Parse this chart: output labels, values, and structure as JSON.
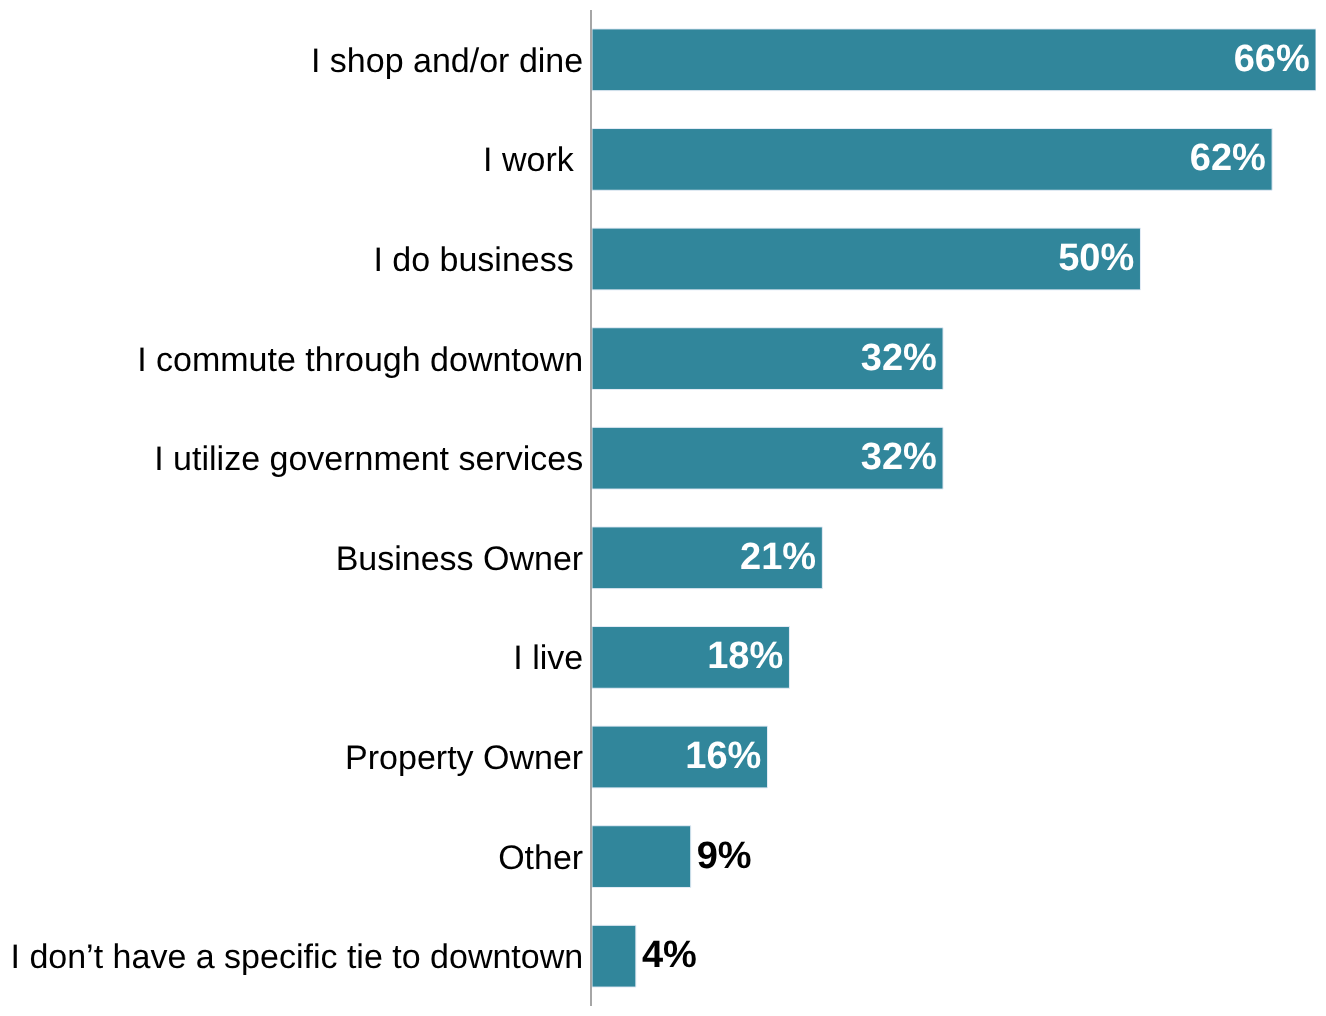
{
  "chart_data": {
    "type": "bar",
    "orientation": "horizontal",
    "categories": [
      "I shop and/or dine",
      "I work ",
      "I do business ",
      "I commute through downtown",
      "I utilize government services",
      "Business Owner",
      "I live",
      "Property Owner",
      "Other",
      "I don’t have a specific tie to downtown"
    ],
    "values": [
      66,
      62,
      50,
      32,
      32,
      21,
      18,
      16,
      9,
      4
    ],
    "value_labels": [
      "66%",
      "62%",
      "50%",
      "32%",
      "32%",
      "21%",
      "18%",
      "16%",
      "9%",
      "4%"
    ],
    "color": "#31869b",
    "tick_labels": "y"
  }
}
